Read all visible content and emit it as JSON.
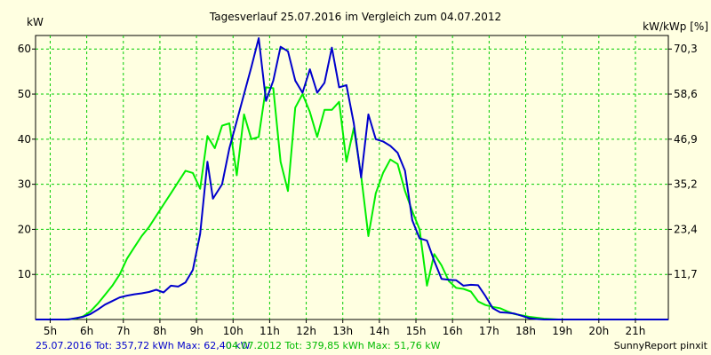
{
  "chart_data": {
    "type": "line",
    "title": "Tagesverlauf 25.07.2016 im Vergleich zum 04.07.2012",
    "ylabel_left": "kW",
    "ylabel_right": "kW/kWp [%]",
    "xlim": [
      4.6,
      21.9
    ],
    "ylim": [
      0,
      63
    ],
    "y_ticks_left": [
      10,
      20,
      30,
      40,
      50,
      60
    ],
    "y_ticks_right": [
      {
        "pos": 10,
        "label": "11,7"
      },
      {
        "pos": 20,
        "label": "23,4"
      },
      {
        "pos": 30,
        "label": "35,2"
      },
      {
        "pos": 40,
        "label": "46,9"
      },
      {
        "pos": 50,
        "label": "58,6"
      },
      {
        "pos": 60,
        "label": "70,3"
      }
    ],
    "x_ticks": [
      {
        "pos": 5,
        "label": "5h"
      },
      {
        "pos": 6,
        "label": "6h"
      },
      {
        "pos": 7,
        "label": "7h"
      },
      {
        "pos": 8,
        "label": "8h"
      },
      {
        "pos": 9,
        "label": "9h"
      },
      {
        "pos": 10,
        "label": "10h"
      },
      {
        "pos": 11,
        "label": "11h"
      },
      {
        "pos": 12,
        "label": "12h"
      },
      {
        "pos": 13,
        "label": "13h"
      },
      {
        "pos": 14,
        "label": "14h"
      },
      {
        "pos": 15,
        "label": "15h"
      },
      {
        "pos": 16,
        "label": "16h"
      },
      {
        "pos": 17,
        "label": "17h"
      },
      {
        "pos": 18,
        "label": "18h"
      },
      {
        "pos": 19,
        "label": "19h"
      },
      {
        "pos": 20,
        "label": "20h"
      },
      {
        "pos": 21,
        "label": "21h"
      }
    ],
    "grid": true,
    "series": [
      {
        "name": "25.07.2016",
        "color": "#0000cc",
        "x": [
          4.6,
          5.5,
          5.7,
          5.9,
          6.1,
          6.3,
          6.5,
          6.7,
          6.9,
          7.1,
          7.3,
          7.5,
          7.7,
          7.9,
          8.1,
          8.3,
          8.5,
          8.7,
          8.9,
          9.1,
          9.3,
          9.45,
          9.7,
          9.9,
          10.1,
          10.3,
          10.5,
          10.7,
          10.9,
          11.1,
          11.3,
          11.5,
          11.7,
          11.9,
          12.1,
          12.3,
          12.5,
          12.7,
          12.9,
          13.1,
          13.3,
          13.5,
          13.7,
          13.9,
          14.1,
          14.3,
          14.5,
          14.7,
          14.9,
          15.1,
          15.3,
          15.5,
          15.7,
          15.9,
          16.1,
          16.3,
          16.5,
          16.7,
          16.9,
          17.1,
          17.3,
          17.5,
          17.7,
          17.9,
          18.1,
          18.3,
          18.5,
          18.7,
          18.9,
          19.1,
          19.3,
          19.5,
          19.7,
          19.9,
          20.1,
          20.3,
          20.5,
          20.7,
          20.9,
          21.1,
          21.9
        ],
        "y": [
          0,
          0,
          0.3,
          0.6,
          1.2,
          2.2,
          3.3,
          4.1,
          4.9,
          5.3,
          5.6,
          5.8,
          6.1,
          6.6,
          6.0,
          7.5,
          7.3,
          8.2,
          11,
          19,
          35,
          26.8,
          30,
          38,
          44,
          50,
          56,
          62.4,
          48.5,
          53,
          60.5,
          59.5,
          53,
          50.3,
          55.5,
          50.3,
          52.5,
          60.3,
          51.5,
          52,
          43.5,
          31.5,
          45.5,
          40,
          39.5,
          38.5,
          37,
          33,
          22,
          18,
          17.5,
          13,
          9,
          8.8,
          8.7,
          7.5,
          7.7,
          7.6,
          5.2,
          2.5,
          1.6,
          1.5,
          1.3,
          0.8,
          0.3,
          0.1,
          0,
          0,
          0,
          0,
          0,
          0,
          0,
          0,
          0,
          0,
          0,
          0,
          0,
          0,
          0
        ]
      },
      {
        "name": "04.07.2012",
        "color": "#00ee00",
        "x": [
          4.6,
          5.4,
          5.7,
          5.9,
          6.1,
          6.3,
          6.5,
          6.7,
          6.9,
          7.1,
          7.3,
          7.5,
          7.7,
          7.9,
          8.1,
          8.3,
          8.5,
          8.7,
          8.9,
          9.1,
          9.3,
          9.5,
          9.7,
          9.9,
          10.1,
          10.3,
          10.5,
          10.7,
          10.9,
          11.1,
          11.3,
          11.5,
          11.7,
          11.9,
          12.1,
          12.3,
          12.5,
          12.7,
          12.9,
          13.1,
          13.3,
          13.5,
          13.7,
          13.9,
          14.1,
          14.3,
          14.5,
          14.7,
          14.9,
          15.1,
          15.3,
          15.5,
          15.7,
          15.9,
          16.1,
          16.3,
          16.5,
          16.7,
          16.9,
          17.1,
          17.3,
          17.5,
          17.7,
          17.9,
          18.1,
          18.3,
          18.5,
          18.7,
          18.9,
          19.1,
          19.3,
          19.5,
          19.7,
          19.9,
          20.1,
          20.3,
          20.5,
          20.7,
          20.9,
          21.1,
          21.3,
          21.9
        ],
        "y": [
          0,
          0,
          0.2,
          0.7,
          1.8,
          3.5,
          5.5,
          7.5,
          10,
          13.5,
          16,
          18.5,
          20.5,
          23,
          25.5,
          28,
          30.5,
          33,
          32.5,
          29,
          40.7,
          38,
          43,
          43.5,
          32,
          45.5,
          40,
          40.5,
          51.5,
          51.3,
          35,
          28.5,
          47,
          50,
          46,
          40.5,
          46.5,
          46.5,
          48.3,
          35,
          42.5,
          32,
          18.5,
          28,
          32.5,
          35.5,
          34.5,
          28.5,
          24,
          20,
          7.5,
          14.5,
          12,
          8.5,
          7,
          6.8,
          6.2,
          4,
          3.2,
          2.8,
          2.5,
          1.8,
          1.2,
          0.9,
          0.6,
          0.4,
          0.2,
          0.1,
          0,
          0,
          0,
          0,
          0,
          0,
          0,
          0,
          0,
          0,
          0,
          0,
          0,
          0
        ]
      }
    ]
  },
  "footer": {
    "series1_text": "25.07.2016 Tot: 357,72 kWh Max: 62,40 kW",
    "series2_text": "04.07.2012 Tot: 379,85 kWh Max: 51,76 kW",
    "credit": "SunnyReport pinxit"
  }
}
